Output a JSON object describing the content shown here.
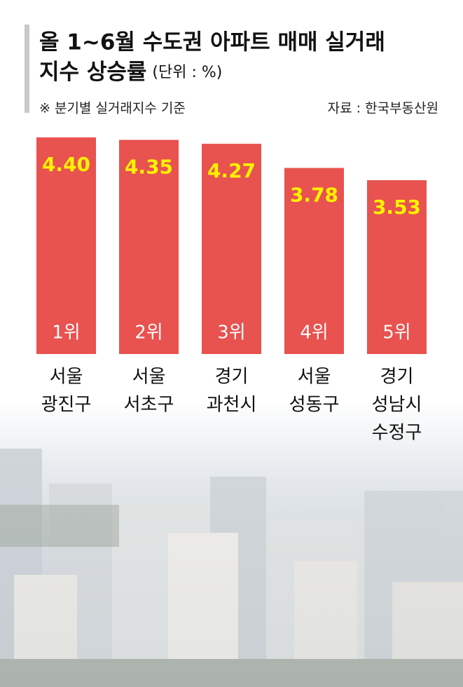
{
  "chart_data": {
    "type": "bar",
    "title_lines": [
      "올 1~6월 수도권 아파트 매매 실거래",
      "지수 상승률"
    ],
    "unit": "(단위 : %)",
    "note": "※ 분기별 실거래지수 기준",
    "source": "자료 : 한국부동산원",
    "categories": [
      [
        "서울",
        "광진구"
      ],
      [
        "서울",
        "서초구"
      ],
      [
        "경기",
        "과천시"
      ],
      [
        "서울",
        "성동구"
      ],
      [
        "경기",
        "성남시",
        "수정구"
      ]
    ],
    "values": [
      4.4,
      4.35,
      4.27,
      3.78,
      3.53
    ],
    "value_labels": [
      "4.40",
      "4.35",
      "4.27",
      "3.78",
      "3.53"
    ],
    "rank_labels": [
      "1위",
      "2위",
      "3위",
      "4위",
      "5위"
    ],
    "color": "#e8524f",
    "value_label_color": "#fff200"
  }
}
